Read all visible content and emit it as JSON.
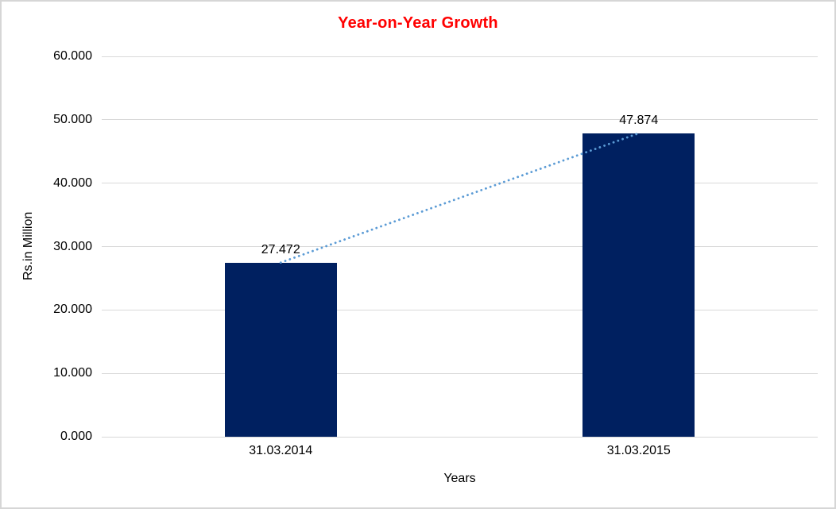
{
  "chart_data": {
    "type": "bar",
    "title": "Year-on-Year Growth",
    "title_color": "#ff0000",
    "xlabel": "Years",
    "ylabel": "Rs.in Million",
    "categories": [
      "31.03.2014",
      "31.03.2015"
    ],
    "values": [
      27.472,
      47.874
    ],
    "value_labels": [
      "27.472",
      "47.874"
    ],
    "ylim": [
      0,
      60
    ],
    "yticks": [
      "0.000",
      "10.000",
      "20.000",
      "30.000",
      "40.000",
      "50.000",
      "60.000"
    ],
    "grid": "horizontal",
    "legend": "none",
    "bar_color": "#002060",
    "trendline": true,
    "trendline_color": "#5b9bd5",
    "gridline_color": "#d9d9d9"
  }
}
